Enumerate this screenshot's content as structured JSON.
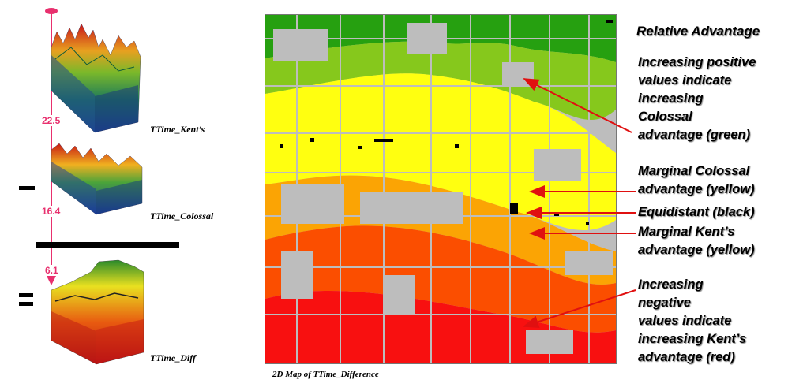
{
  "left_panel": {
    "surfaces": [
      {
        "label": "TTime_Kent’s"
      },
      {
        "label": "TTime_Colossal"
      },
      {
        "label": "TTime_Diff"
      }
    ],
    "values": [
      "22.5",
      "16.4",
      "6.1"
    ],
    "operators": {
      "minus": "minus",
      "equals": "equals"
    },
    "colors": {
      "pin": "#e8306e"
    }
  },
  "map": {
    "caption": "2D Map of TTime_Difference",
    "colors": {
      "background": "#bdbdbd",
      "dark_green": "#26a010",
      "light_green": "#86c81c",
      "yellow": "#ffff10",
      "orange": "#fba404",
      "red_orange": "#fb4e00",
      "red": "#f81010",
      "black": "#000000"
    }
  },
  "annotations": {
    "title": "Relative Advantage",
    "green": "Increasing positive\nvalues indicate\nincreasing\nColossal\nadvantage (green)",
    "marginal_colossal": "Marginal Colossal\nadvantage (yellow)",
    "equidistant": "Equidistant (black)",
    "marginal_kent": "Marginal Kent’s\nadvantage (yellow)",
    "red": "Increasing\nnegative\nvalues indicate\nincreasing Kent’s\nadvantage (red)",
    "arrow_color": "#e01010"
  }
}
